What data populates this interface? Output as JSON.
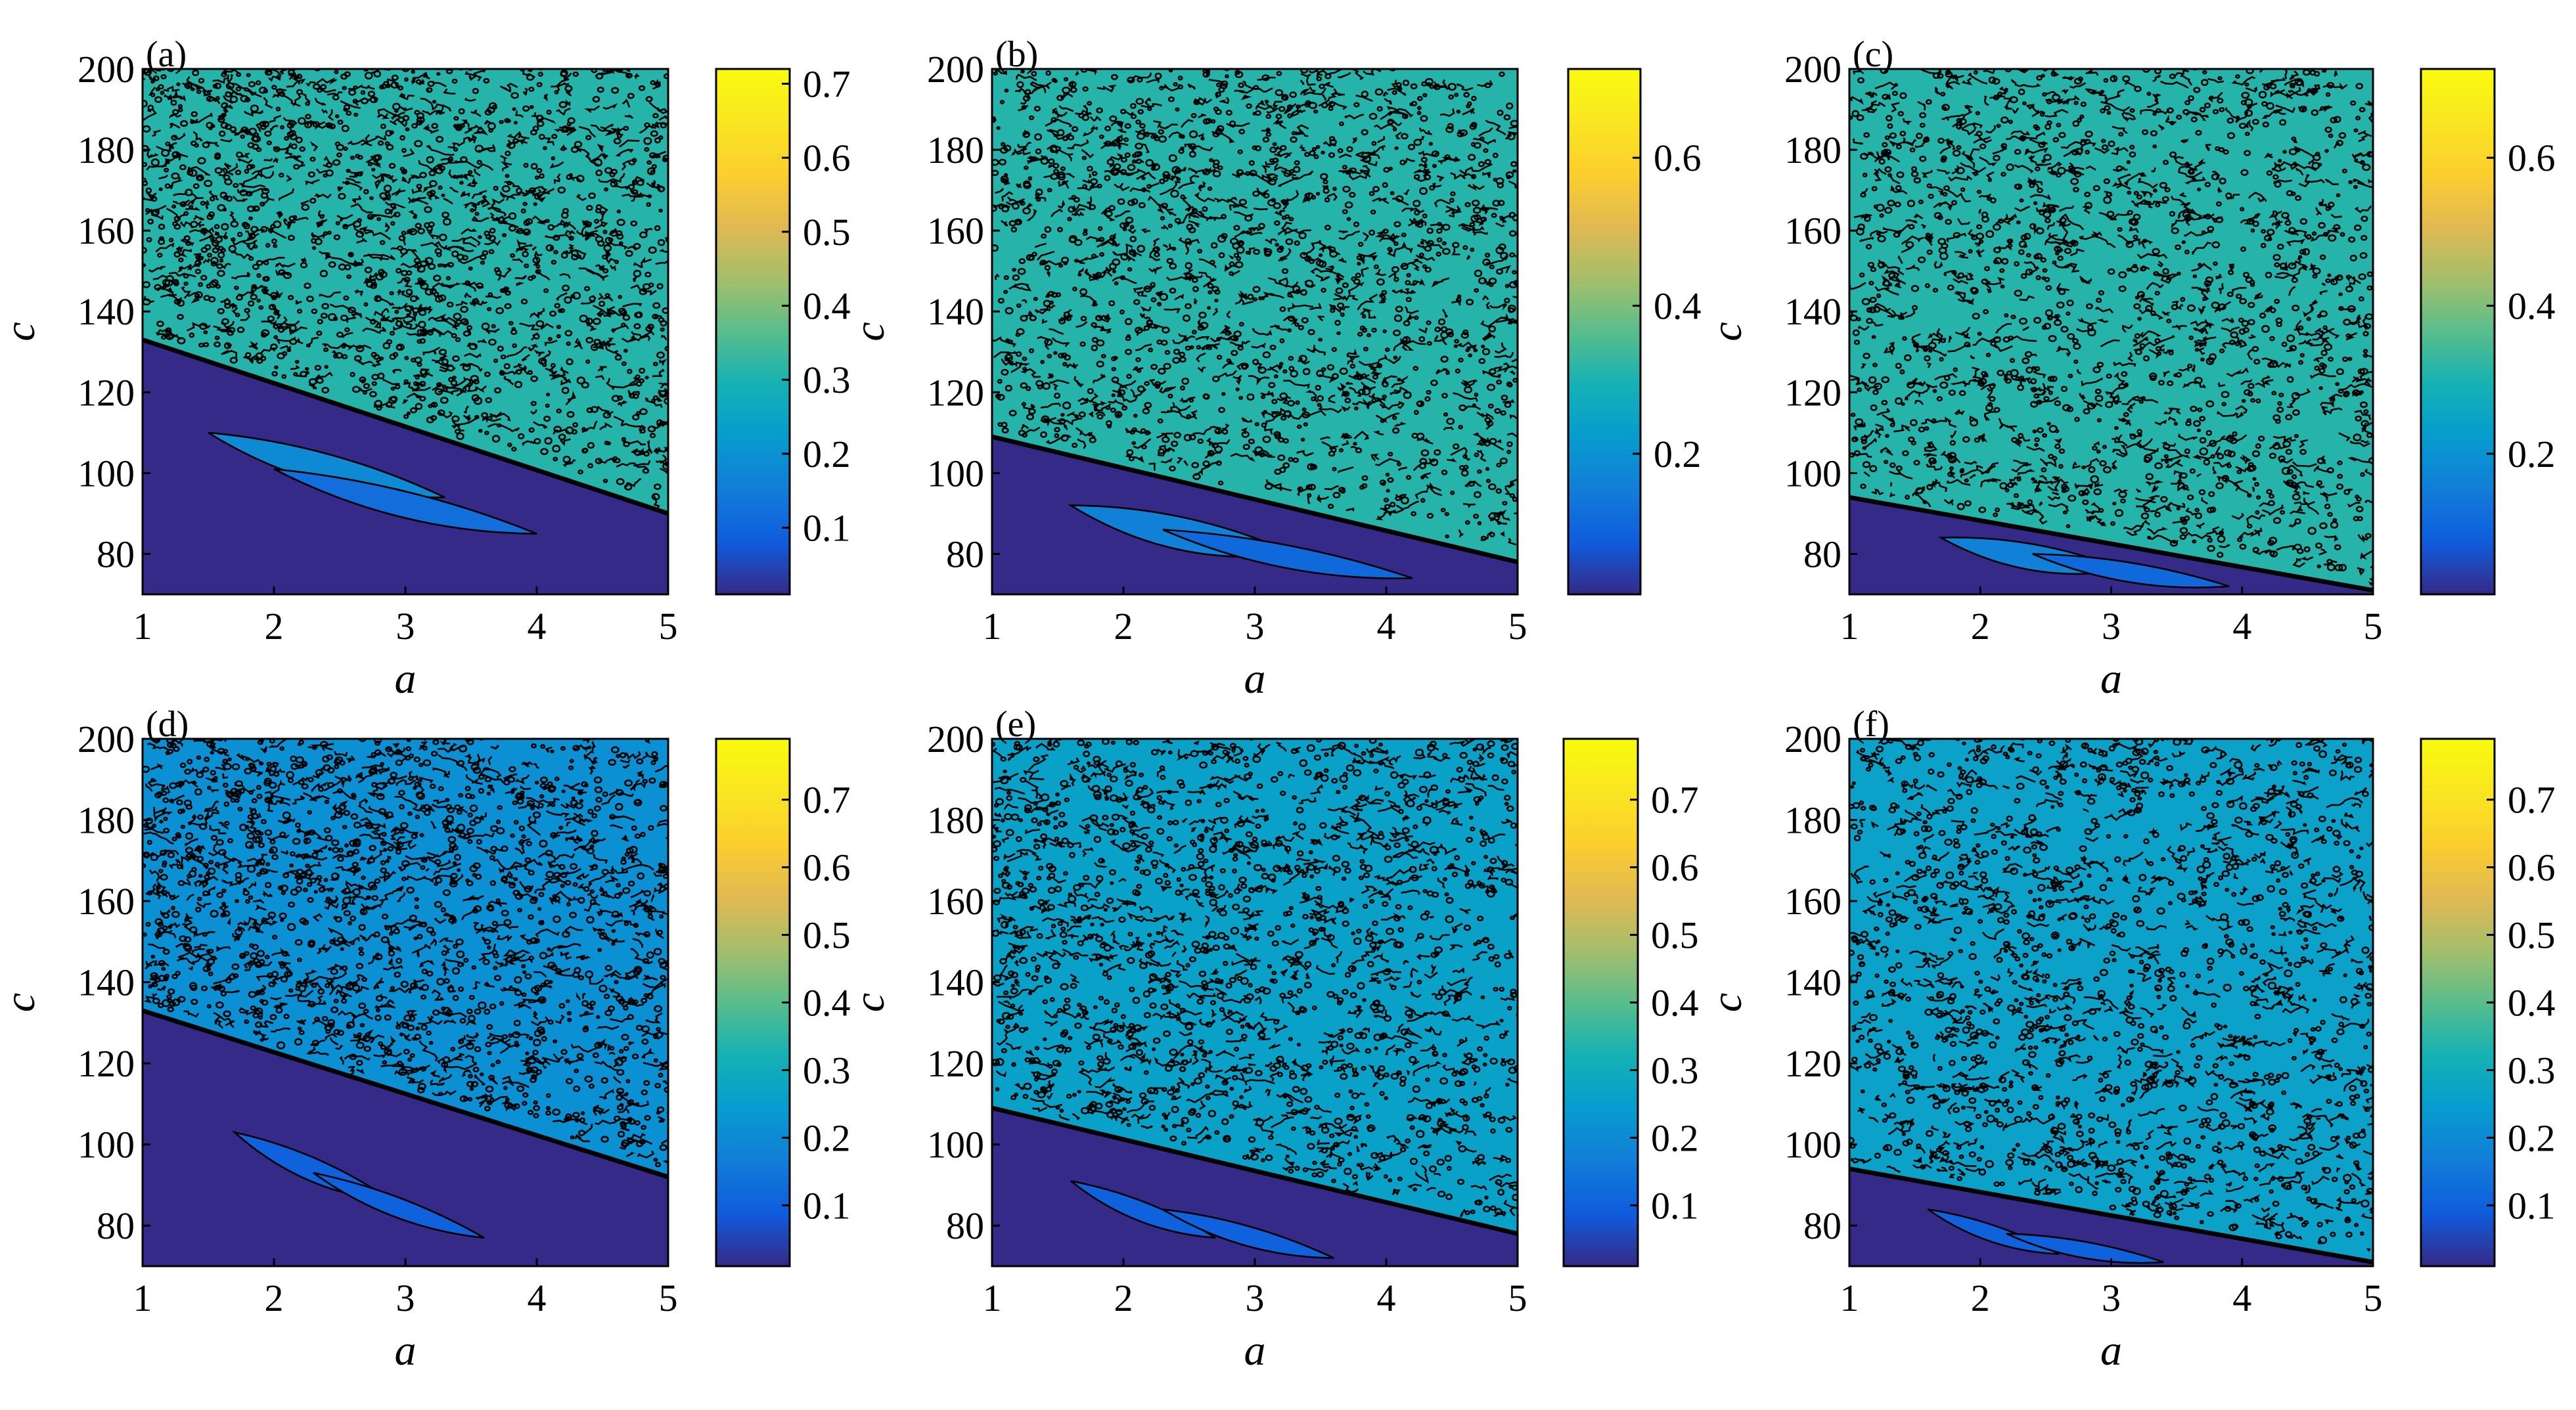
{
  "chart_data": [
    {
      "type": "heatmap",
      "panel": "(a)",
      "xlabel": "a",
      "ylabel": "c",
      "xlim": [
        1,
        5
      ],
      "ylim": [
        70,
        200
      ],
      "x_ticks": [
        "1",
        "2",
        "3",
        "4",
        "5"
      ],
      "y_ticks": [
        "80",
        "100",
        "120",
        "140",
        "160",
        "180",
        "200"
      ],
      "colorbar": {
        "range": [
          0.01,
          0.72
        ],
        "ticks": [
          0.1,
          0.2,
          0.3,
          0.4,
          0.5,
          0.6,
          0.7
        ],
        "tick_labels": [
          "0.1",
          "0.2",
          "0.3",
          "0.4",
          "0.5",
          "0.6",
          "0.7"
        ]
      },
      "boundary": {
        "c_at_a1": 133,
        "c_at_a5": 90
      },
      "upper_value": 0.72,
      "boundary_value": 0.3,
      "features": [
        {
          "c0": 110,
          "c1": 94,
          "width": 9,
          "a0": 1.5,
          "a1": 3.3,
          "value": 0.18
        },
        {
          "c0": 101,
          "c1": 85,
          "width": 8,
          "a0": 2.0,
          "a1": 4.0,
          "value": 0.12
        }
      ]
    },
    {
      "type": "heatmap",
      "panel": "(b)",
      "xlabel": "a",
      "ylabel": "c",
      "xlim": [
        1,
        5
      ],
      "ylim": [
        70,
        200
      ],
      "x_ticks": [
        "1",
        "2",
        "3",
        "4",
        "5"
      ],
      "y_ticks": [
        "80",
        "100",
        "120",
        "140",
        "160",
        "180",
        "200"
      ],
      "colorbar": {
        "range": [
          0.01,
          0.72
        ],
        "ticks": [
          0.2,
          0.4,
          0.6
        ],
        "tick_labels": [
          "0.2",
          "0.4",
          "0.6"
        ]
      },
      "boundary": {
        "c_at_a1": 109,
        "c_at_a5": 78
      },
      "upper_value": 0.72,
      "boundary_value": 0.3,
      "features": [
        {
          "c0": 92,
          "c1": 80,
          "width": 10,
          "a0": 1.6,
          "a1": 3.3,
          "value": 0.16
        },
        {
          "c0": 86,
          "c1": 74,
          "width": 7,
          "a0": 2.3,
          "a1": 4.2,
          "value": 0.11
        }
      ]
    },
    {
      "type": "heatmap",
      "panel": "(c)",
      "xlabel": "a",
      "ylabel": "c",
      "xlim": [
        1,
        5
      ],
      "ylim": [
        70,
        200
      ],
      "x_ticks": [
        "1",
        "2",
        "3",
        "4",
        "5"
      ],
      "y_ticks": [
        "80",
        "100",
        "120",
        "140",
        "160",
        "180",
        "200"
      ],
      "colorbar": {
        "range": [
          0.01,
          0.72
        ],
        "ticks": [
          0.2,
          0.4,
          0.6
        ],
        "tick_labels": [
          "0.2",
          "0.4",
          "0.6"
        ]
      },
      "boundary": {
        "c_at_a1": 94,
        "c_at_a5": 71
      },
      "upper_value": 0.72,
      "boundary_value": 0.3,
      "features": [
        {
          "c0": 84,
          "c1": 76,
          "width": 8,
          "a0": 1.7,
          "a1": 3.1,
          "value": 0.16
        },
        {
          "c0": 80,
          "c1": 72,
          "width": 6,
          "a0": 2.4,
          "a1": 3.9,
          "value": 0.11
        }
      ]
    },
    {
      "type": "heatmap",
      "panel": "(d)",
      "xlabel": "a",
      "ylabel": "c",
      "xlim": [
        1,
        5
      ],
      "ylim": [
        70,
        200
      ],
      "x_ticks": [
        "1",
        "2",
        "3",
        "4",
        "5"
      ],
      "y_ticks": [
        "80",
        "100",
        "120",
        "140",
        "160",
        "180",
        "200"
      ],
      "colorbar": {
        "range": [
          0.01,
          0.79
        ],
        "ticks": [
          0.1,
          0.2,
          0.3,
          0.4,
          0.5,
          0.6,
          0.7
        ],
        "tick_labels": [
          "0.1",
          "0.2",
          "0.3",
          "0.4",
          "0.5",
          "0.6",
          "0.7"
        ]
      },
      "boundary": {
        "c_at_a1": 133,
        "c_at_a5": 92
      },
      "upper_value": 0.66,
      "boundary_value": 0.2,
      "features": [
        {
          "c0": 103,
          "c1": 86,
          "width": 7,
          "a0": 1.7,
          "a1": 2.9,
          "value": 0.1
        },
        {
          "c0": 93,
          "c1": 77,
          "width": 6,
          "a0": 2.3,
          "a1": 3.6,
          "value": 0.1
        }
      ]
    },
    {
      "type": "heatmap",
      "panel": "(e)",
      "xlabel": "a",
      "ylabel": "c",
      "xlim": [
        1,
        5
      ],
      "ylim": [
        70,
        200
      ],
      "x_ticks": [
        "1",
        "2",
        "3",
        "4",
        "5"
      ],
      "y_ticks": [
        "80",
        "100",
        "120",
        "140",
        "160",
        "180",
        "200"
      ],
      "colorbar": {
        "range": [
          0.01,
          0.79
        ],
        "ticks": [
          0.1,
          0.2,
          0.3,
          0.4,
          0.5,
          0.6,
          0.7
        ],
        "tick_labels": [
          "0.1",
          "0.2",
          "0.3",
          "0.4",
          "0.5",
          "0.6",
          "0.7"
        ]
      },
      "boundary": {
        "c_at_a1": 109,
        "c_at_a5": 78
      },
      "upper_value": 0.72,
      "boundary_value": 0.25,
      "features": [
        {
          "c0": 91,
          "c1": 77,
          "width": 6,
          "a0": 1.6,
          "a1": 2.7,
          "value": 0.1
        },
        {
          "c0": 84,
          "c1": 72,
          "width": 6,
          "a0": 2.3,
          "a1": 3.6,
          "value": 0.1
        }
      ]
    },
    {
      "type": "heatmap",
      "panel": "(f)",
      "xlabel": "a",
      "ylabel": "c",
      "xlim": [
        1,
        5
      ],
      "ylim": [
        70,
        200
      ],
      "x_ticks": [
        "1",
        "2",
        "3",
        "4",
        "5"
      ],
      "y_ticks": [
        "80",
        "100",
        "120",
        "140",
        "160",
        "180",
        "200"
      ],
      "colorbar": {
        "range": [
          0.01,
          0.79
        ],
        "ticks": [
          0.1,
          0.2,
          0.3,
          0.4,
          0.5,
          0.6,
          0.7
        ],
        "tick_labels": [
          "0.1",
          "0.2",
          "0.3",
          "0.4",
          "0.5",
          "0.6",
          "0.7"
        ]
      },
      "boundary": {
        "c_at_a1": 94,
        "c_at_a5": 71
      },
      "upper_value": 0.74,
      "boundary_value": 0.25,
      "features": [
        {
          "c0": 84,
          "c1": 73,
          "width": 5,
          "a0": 1.6,
          "a1": 2.6,
          "value": 0.1
        },
        {
          "c0": 78,
          "c1": 71,
          "width": 5,
          "a0": 2.2,
          "a1": 3.4,
          "value": 0.1
        }
      ]
    }
  ]
}
